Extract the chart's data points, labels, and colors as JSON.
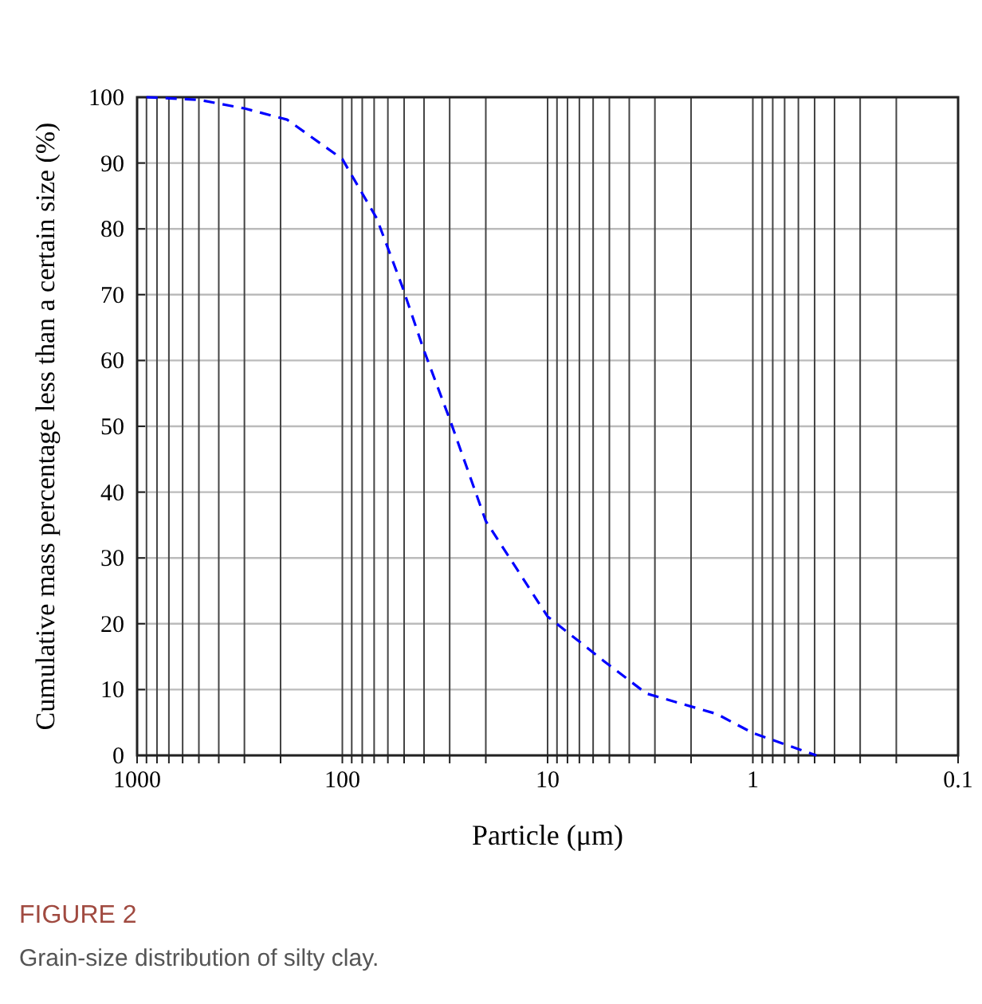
{
  "chart_data": {
    "type": "line",
    "xlabel": "Particle (μm)",
    "ylabel": "Cumulative mass percentage less than a certain size (%)",
    "annotations": [
      "FIGURE 2",
      "Grain-size distribution of silty clay."
    ],
    "log": "x",
    "grid": true,
    "line_style": "dashed",
    "marker": "none",
    "xlim": [
      1000,
      0.1
    ],
    "ylim": [
      0,
      100
    ],
    "xticks": [
      1000,
      {
        "value": 900,
        "label": null
      },
      {
        "value": 800,
        "label": null
      },
      {
        "value": 700,
        "label": null
      },
      {
        "value": 600,
        "label": null
      },
      {
        "value": 500,
        "label": null
      },
      {
        "value": 400,
        "label": null
      },
      {
        "value": 300,
        "label": null
      },
      {
        "value": 200,
        "label": null
      },
      100,
      {
        "value": 90,
        "label": null
      },
      {
        "value": 80,
        "label": null
      },
      {
        "value": 70,
        "label": null
      },
      {
        "value": 60,
        "label": null
      },
      {
        "value": 50,
        "label": null
      },
      {
        "value": 40,
        "label": null
      },
      {
        "value": 30,
        "label": null
      },
      {
        "value": 20,
        "label": null
      },
      10,
      {
        "value": 9,
        "label": null
      },
      {
        "value": 8,
        "label": null
      },
      {
        "value": 7,
        "label": null
      },
      {
        "value": 6,
        "label": null
      },
      {
        "value": 5,
        "label": null
      },
      {
        "value": 4,
        "label": null
      },
      {
        "value": 3,
        "label": null
      },
      {
        "value": 2,
        "label": null
      },
      1,
      {
        "value": 0.9,
        "label": null
      },
      {
        "value": 0.8,
        "label": null
      },
      {
        "value": 0.7,
        "label": null
      },
      {
        "value": 0.6,
        "label": null
      },
      {
        "value": 0.5,
        "label": null
      },
      {
        "value": 0.4,
        "label": null
      },
      {
        "value": 0.3,
        "label": null
      },
      {
        "value": 0.2,
        "label": null
      },
      0.1
    ],
    "yticks": [
      0,
      10,
      20,
      30,
      40,
      50,
      60,
      70,
      80,
      90,
      100
    ],
    "series": [
      {
        "color": "#0000ff",
        "x": [
          900,
          500,
          300,
          186,
          100,
          68,
          51,
          40,
          30,
          20,
          10,
          5.3,
          3.3,
          1.5,
          1,
          0.49
        ],
        "values": [
          100,
          99.6,
          98.3,
          96.6,
          90.6,
          81.6,
          71.2,
          61.5,
          51.1,
          35.6,
          21.1,
          14.3,
          9.4,
          6.3,
          3.4,
          0
        ]
      }
    ]
  }
}
